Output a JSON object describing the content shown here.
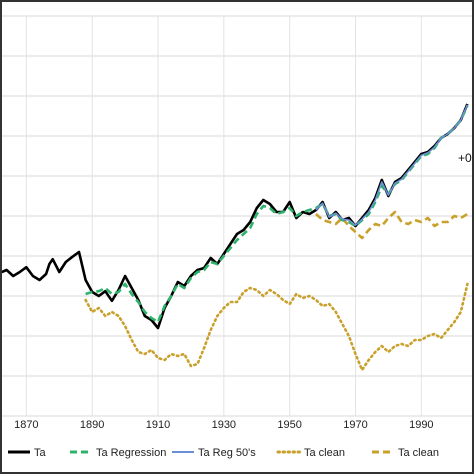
{
  "chart_data": {
    "type": "line",
    "title": "",
    "xlabel": "",
    "ylabel": "",
    "xlim": [
      1862,
      2006
    ],
    "ylim": [
      0,
      10
    ],
    "x_ticks": [
      1870,
      1890,
      1910,
      1930,
      1950,
      1970,
      1990
    ],
    "y_gridlines": [
      0,
      1,
      2,
      3,
      4,
      5,
      6,
      7,
      8,
      9,
      10
    ],
    "grid": true,
    "legend_position": "bottom",
    "annotation": "+0",
    "series": [
      {
        "name": "Ta",
        "color": "#000000",
        "style": "solid",
        "x": [
          1862,
          1864,
          1866,
          1868,
          1870,
          1872,
          1874,
          1876,
          1877,
          1878,
          1880,
          1882,
          1884,
          1886,
          1888,
          1890,
          1892,
          1894,
          1896,
          1898,
          1900,
          1902,
          1904,
          1906,
          1908,
          1910,
          1912,
          1914,
          1916,
          1918,
          1920,
          1922,
          1924,
          1926,
          1928,
          1930,
          1932,
          1934,
          1936,
          1938,
          1940,
          1942,
          1944,
          1946,
          1948,
          1950,
          1952,
          1954,
          1956,
          1958,
          1960,
          1962,
          1964,
          1966,
          1968,
          1970,
          1972,
          1974,
          1976,
          1978,
          1980,
          1982,
          1984,
          1986,
          1988,
          1990,
          1992,
          1994,
          1996,
          1998,
          2000,
          2002,
          2004
        ],
        "values": [
          3.58,
          3.65,
          3.5,
          3.6,
          3.72,
          3.5,
          3.4,
          3.55,
          3.8,
          3.92,
          3.6,
          3.85,
          3.98,
          4.1,
          3.4,
          3.1,
          3.0,
          3.12,
          2.88,
          3.15,
          3.5,
          3.2,
          2.9,
          2.5,
          2.4,
          2.2,
          2.7,
          3.0,
          3.35,
          3.25,
          3.5,
          3.65,
          3.7,
          3.95,
          3.8,
          4.05,
          4.3,
          4.55,
          4.65,
          4.85,
          5.2,
          5.4,
          5.3,
          5.1,
          5.1,
          5.35,
          4.95,
          5.1,
          5.05,
          5.15,
          5.35,
          4.95,
          5.1,
          4.9,
          4.95,
          4.75,
          4.95,
          5.15,
          5.45,
          5.9,
          5.5,
          5.85,
          5.95,
          6.15,
          6.35,
          6.55,
          6.6,
          6.75,
          6.95,
          7.05,
          7.2,
          7.4,
          7.8
        ]
      },
      {
        "name": "Ta Regression",
        "color": "#2db36b",
        "style": "dashed",
        "x": [
          1888,
          1890,
          1892,
          1894,
          1896,
          1898,
          1900,
          1902,
          1904,
          1906,
          1908,
          1910,
          1912,
          1914,
          1916,
          1918,
          1920,
          1922,
          1924,
          1926,
          1928,
          1930,
          1932,
          1934,
          1936,
          1938,
          1940,
          1942,
          1944,
          1946,
          1948,
          1950,
          1952,
          1954,
          1956,
          1958,
          1960,
          1962,
          1964,
          1966,
          1968,
          1970,
          1972,
          1974,
          1976,
          1978,
          1980,
          1982,
          1984,
          1986,
          1988,
          1990,
          1992,
          1994,
          1996,
          1998,
          2000,
          2002,
          2004
        ],
        "values": [
          3.05,
          3.1,
          3.12,
          3.2,
          3.05,
          3.1,
          3.3,
          3.05,
          2.85,
          2.6,
          2.45,
          2.35,
          2.75,
          3.0,
          3.3,
          3.2,
          3.45,
          3.6,
          3.65,
          3.85,
          3.8,
          4.0,
          4.2,
          4.4,
          4.55,
          4.7,
          5.05,
          5.25,
          5.2,
          5.05,
          5.1,
          5.2,
          5.0,
          5.1,
          5.15,
          5.2,
          5.3,
          5.0,
          5.05,
          4.9,
          4.85,
          4.75,
          4.9,
          5.05,
          5.35,
          5.75,
          5.55,
          5.8,
          5.9,
          6.1,
          6.3,
          6.5,
          6.55,
          6.7,
          6.95,
          7.05,
          7.2,
          7.4,
          7.75
        ]
      },
      {
        "name": "Ta Reg 50's",
        "color": "#6b8fd4",
        "style": "solid",
        "x": [
          1958,
          1960,
          1962,
          1964,
          1966,
          1968,
          1970,
          1972,
          1974,
          1976,
          1978,
          1980,
          1982,
          1984,
          1986,
          1988,
          1990,
          1992,
          1994,
          1996,
          1998,
          2000,
          2002,
          2004
        ],
        "values": [
          5.15,
          5.32,
          4.97,
          5.07,
          4.92,
          4.9,
          4.77,
          4.92,
          5.1,
          5.4,
          5.85,
          5.52,
          5.82,
          5.92,
          6.12,
          6.32,
          6.52,
          6.58,
          6.72,
          6.95,
          7.05,
          7.2,
          7.4,
          7.78
        ]
      },
      {
        "name": "Ta clean",
        "color": "#c9a02a",
        "style": "dotted",
        "x": [
          1888,
          1890,
          1892,
          1894,
          1896,
          1898,
          1900,
          1902,
          1904,
          1906,
          1908,
          1910,
          1912,
          1914,
          1916,
          1918,
          1920,
          1922,
          1924,
          1926,
          1928,
          1930,
          1932,
          1934,
          1936,
          1938,
          1940,
          1942,
          1944,
          1946,
          1948,
          1950,
          1952,
          1954,
          1956,
          1958,
          1960,
          1962,
          1964,
          1966,
          1968,
          1970,
          1972,
          1974,
          1976,
          1978,
          1980,
          1982,
          1984,
          1986,
          1988,
          1990,
          1992,
          1994,
          1996,
          1998,
          2000,
          2002,
          2004
        ],
        "values": [
          2.9,
          2.6,
          2.7,
          2.5,
          2.6,
          2.5,
          2.25,
          1.9,
          1.6,
          1.55,
          1.65,
          1.45,
          1.4,
          1.55,
          1.5,
          1.55,
          1.25,
          1.3,
          1.7,
          2.15,
          2.5,
          2.7,
          2.85,
          2.85,
          3.1,
          3.2,
          3.15,
          3.0,
          3.15,
          3.05,
          2.9,
          2.8,
          3.05,
          2.95,
          3.0,
          2.9,
          2.75,
          2.8,
          2.6,
          2.3,
          2.0,
          1.55,
          1.15,
          1.4,
          1.6,
          1.75,
          1.6,
          1.75,
          1.8,
          1.75,
          1.9,
          1.9,
          2.0,
          2.05,
          1.95,
          2.15,
          2.35,
          2.6,
          3.3
        ]
      },
      {
        "name": "Ta clean",
        "color": "#c9a02a",
        "style": "dashed",
        "x": [
          1958,
          1960,
          1962,
          1964,
          1966,
          1968,
          1970,
          1972,
          1974,
          1976,
          1978,
          1980,
          1982,
          1984,
          1986,
          1988,
          1990,
          1992,
          1994,
          1996,
          1998,
          2000,
          2002,
          2004
        ],
        "values": [
          5.05,
          4.9,
          4.85,
          4.8,
          4.95,
          4.75,
          4.6,
          4.45,
          4.65,
          4.8,
          4.75,
          4.95,
          5.1,
          4.85,
          4.8,
          4.9,
          4.85,
          4.95,
          4.75,
          4.85,
          4.85,
          5.0,
          4.95,
          5.05
        ]
      }
    ]
  }
}
